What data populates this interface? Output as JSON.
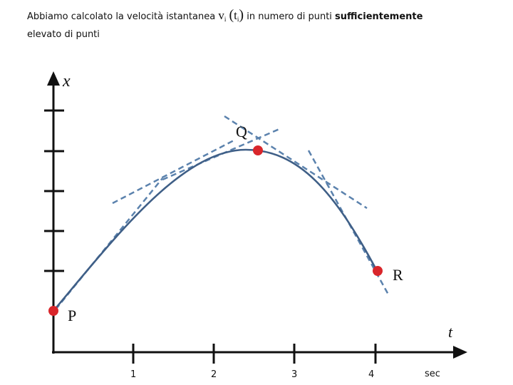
{
  "caption": {
    "text_before": "Abbiamo calcolato  la velocità istantanea ",
    "v_symbol": "v",
    "v_subscript": "i",
    "t_symbol": "t",
    "t_subscript": "i",
    "text_middle": " in numero di   punti ",
    "text_bold": "sufficientemente",
    "text_line2": "elevato di punti"
  },
  "axes": {
    "x_label": "x",
    "t_label": "t",
    "unit_label": "sec",
    "t_ticks": [
      "1",
      "2",
      "3",
      "4"
    ]
  },
  "points": {
    "P": "P",
    "Q": "Q",
    "R": "R"
  },
  "colors": {
    "curve": "#3f5f87",
    "tangent": "#5b82ad",
    "point": "#d9262b",
    "axis": "#111111"
  }
}
